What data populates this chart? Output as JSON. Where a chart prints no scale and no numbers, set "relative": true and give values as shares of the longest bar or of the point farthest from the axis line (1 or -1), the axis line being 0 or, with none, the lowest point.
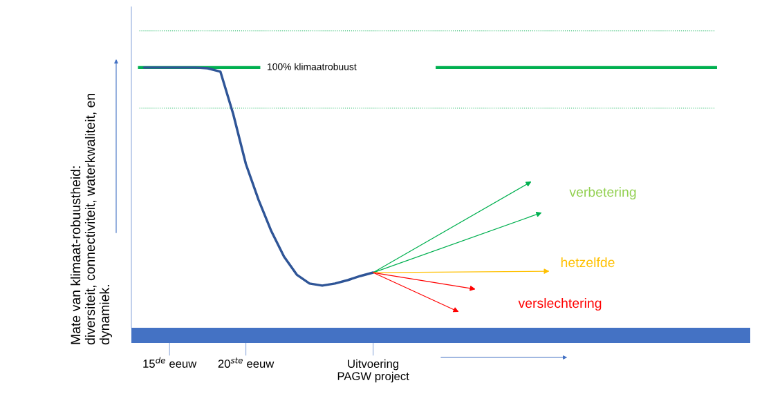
{
  "chart_data": {
    "type": "line",
    "relative": true,
    "ylabel": "Mate van klimaat-robuustheid:\ndiversiteit, connectiviteit, waterkwaliteit, en\ndynamiek.",
    "categories": [
      null,
      null,
      null,
      "15$^{de}$ eeuw",
      null,
      null,
      null,
      null,
      null,
      "20$^{ste}$ eeuw",
      null,
      null,
      null,
      null,
      null,
      null,
      null,
      null,
      null,
      "Uitvoering\nPAGW project",
      null,
      null,
      null,
      null,
      null,
      null,
      null,
      null,
      null,
      null,
      null,
      null,
      null,
      null,
      null,
      null,
      null,
      null,
      null,
      null,
      null,
      null,
      null,
      null,
      null,
      null,
      null,
      null,
      null
    ],
    "series": [
      {
        "color": "#2f5597",
        "values": [
          null,
          1.0,
          1.0,
          1.0,
          1.0,
          1.0,
          0.997,
          0.984,
          0.822,
          0.629,
          0.491,
          0.371,
          0.273,
          0.204,
          0.17,
          0.162,
          0.17,
          0.183,
          0.199,
          0.212,
          null,
          null,
          null,
          null,
          null,
          null,
          null,
          null,
          null,
          null,
          null,
          null,
          null,
          null,
          null,
          null,
          null,
          null,
          null,
          null,
          null,
          null,
          null,
          null,
          null,
          null,
          null,
          null,
          null
        ]
      }
    ],
    "ref_lines": [
      {
        "axis": "y",
        "value": 1.0,
        "label": "100% klimaatrobuust",
        "color": "#00b050",
        "line_style": "solid"
      },
      {
        "axis": "y",
        "value": 1.141,
        "color": "#00b050",
        "line_style": "dotted"
      },
      {
        "axis": "y",
        "value": 0.844,
        "color": "#00b050",
        "line_style": "dotted"
      }
    ],
    "annotations": [
      "verbetering",
      "hetzelfde",
      "verslechtering"
    ],
    "grid": false,
    "legend": false,
    "marker": "none",
    "line_style": "solid"
  }
}
